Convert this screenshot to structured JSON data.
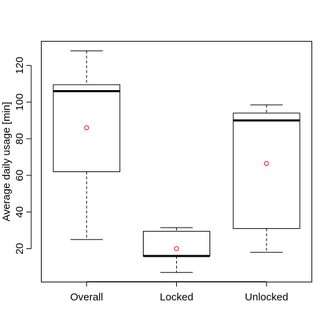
{
  "chart_data": {
    "type": "box",
    "title": "",
    "xlabel": "",
    "ylabel": "Average daily usage [min]",
    "categories": [
      "Overall",
      "Locked",
      "Unlocked"
    ],
    "yticks": [
      20,
      40,
      60,
      80,
      100,
      120
    ],
    "ylim": [
      2,
      133
    ],
    "boxes": [
      {
        "category": "Overall",
        "min": 25,
        "q1": 62,
        "median": 106,
        "q3": 109.5,
        "max": 128,
        "mean": 86
      },
      {
        "category": "Locked",
        "min": 7,
        "q1": 16,
        "median": 16,
        "q3": 29.5,
        "max": 31.5,
        "mean": 20
      },
      {
        "category": "Unlocked",
        "min": 18,
        "q1": 31,
        "median": 90,
        "q3": 94,
        "max": 98.5,
        "mean": 66.5
      }
    ],
    "colors": {
      "box_stroke": "#000000",
      "mean_marker": "#ff0000",
      "background": "#ffffff"
    }
  }
}
